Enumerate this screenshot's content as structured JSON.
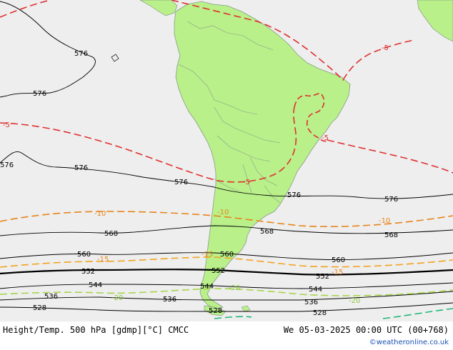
{
  "footer": {
    "title": "Height/Temp. 500 hPa [gdmp][°C] CMCC",
    "datetime": "We 05-03-2025 00:00 UTC (00+768)",
    "credit": "©weatheronline.co.uk"
  },
  "colors": {
    "ocean": "#eeeeee",
    "land": "#b9f08a",
    "coast": "#8a9a8a",
    "height_contour": "#000000",
    "temp_minus5": "#e03030",
    "temp_minus10": "#e8841a",
    "temp_minus15": "#f2a31e",
    "temp_minus20": "#a6d44a",
    "temp_minus25": "#21b77a"
  },
  "contour_labels": [
    {
      "id": "h576-a",
      "text": "576",
      "kind": "height"
    },
    {
      "id": "h576-b",
      "text": "576",
      "kind": "height"
    },
    {
      "id": "h576-c",
      "text": "576",
      "kind": "height"
    },
    {
      "id": "h576-d",
      "text": "576",
      "kind": "height"
    },
    {
      "id": "h576-e",
      "text": "576",
      "kind": "height"
    },
    {
      "id": "h576-f",
      "text": "576",
      "kind": "height"
    },
    {
      "id": "h576-g",
      "text": "576",
      "kind": "height"
    },
    {
      "id": "h568-a",
      "text": "568",
      "kind": "height"
    },
    {
      "id": "h568-b",
      "text": "568",
      "kind": "height"
    },
    {
      "id": "h568-c",
      "text": "568",
      "kind": "height"
    },
    {
      "id": "h560-a",
      "text": "560",
      "kind": "height"
    },
    {
      "id": "h560-b",
      "text": "560",
      "kind": "height"
    },
    {
      "id": "h560-c",
      "text": "560",
      "kind": "height"
    },
    {
      "id": "h552-a",
      "text": "552",
      "kind": "height"
    },
    {
      "id": "h552-b",
      "text": "552",
      "kind": "height"
    },
    {
      "id": "h552-c",
      "text": "552",
      "kind": "height"
    },
    {
      "id": "h544-a",
      "text": "544",
      "kind": "height"
    },
    {
      "id": "h544-b",
      "text": "544",
      "kind": "height"
    },
    {
      "id": "h544-c",
      "text": "544",
      "kind": "height"
    },
    {
      "id": "h536-a",
      "text": "536",
      "kind": "height"
    },
    {
      "id": "h536-b",
      "text": "536",
      "kind": "height"
    },
    {
      "id": "h536-c",
      "text": "536",
      "kind": "height"
    },
    {
      "id": "h528-a",
      "text": "528",
      "kind": "height"
    },
    {
      "id": "h528-b",
      "text": "528",
      "kind": "height"
    },
    {
      "id": "h528-c",
      "text": "528",
      "kind": "height"
    },
    {
      "id": "t-5-a",
      "text": "-5",
      "kind": "temp5"
    },
    {
      "id": "t-5-b",
      "text": "-5",
      "kind": "temp5"
    },
    {
      "id": "t-5-c",
      "text": "-5",
      "kind": "temp5"
    },
    {
      "id": "t-5-d",
      "text": "-5",
      "kind": "temp5"
    },
    {
      "id": "t-10-a",
      "text": "-10",
      "kind": "temp10"
    },
    {
      "id": "t-10-b",
      "text": "-10",
      "kind": "temp10"
    },
    {
      "id": "t-10-c",
      "text": "-10",
      "kind": "temp10"
    },
    {
      "id": "t-15-a",
      "text": "-15",
      "kind": "temp15"
    },
    {
      "id": "t-15-b",
      "text": "-15",
      "kind": "temp15"
    },
    {
      "id": "t-15-c",
      "text": "-15",
      "kind": "temp15"
    },
    {
      "id": "t-20-a",
      "text": "-20",
      "kind": "temp20"
    },
    {
      "id": "t-20-b",
      "text": "-20",
      "kind": "temp20"
    },
    {
      "id": "t-20-c",
      "text": "-20",
      "kind": "temp20"
    }
  ]
}
